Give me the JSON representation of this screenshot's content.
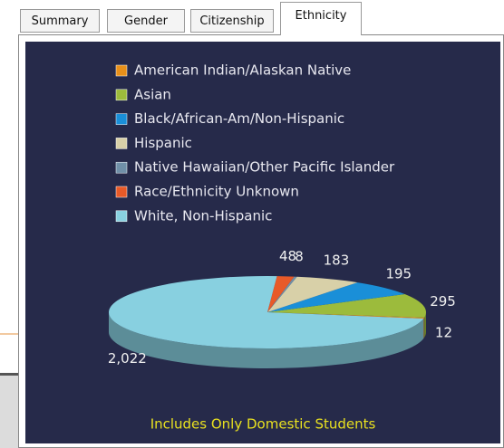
{
  "tabs": [
    "Summary",
    "Gender",
    "Citizenship",
    "Ethnicity"
  ],
  "chart_data": {
    "type": "pie",
    "categories": [
      "American Indian/Alaskan Native",
      "Asian",
      "Black/African-Am/Non-Hispanic",
      "Hispanic",
      "Native Hawaiian/Other Pacific Islander",
      "Race/Ethnicity Unknown",
      "White, Non-Hispanic"
    ],
    "values": [
      12,
      295,
      195,
      183,
      8,
      48,
      2022
    ],
    "value_labels": [
      "12",
      "295",
      "195",
      "183",
      "8",
      "48",
      "2,022"
    ],
    "colors": [
      "#e8901a",
      "#9cbb3c",
      "#1a8fd8",
      "#d8d0a8",
      "#7090a8",
      "#e85a28",
      "#88d0e0"
    ],
    "legend": "top",
    "annotation": "Includes Only Domestic Students"
  }
}
